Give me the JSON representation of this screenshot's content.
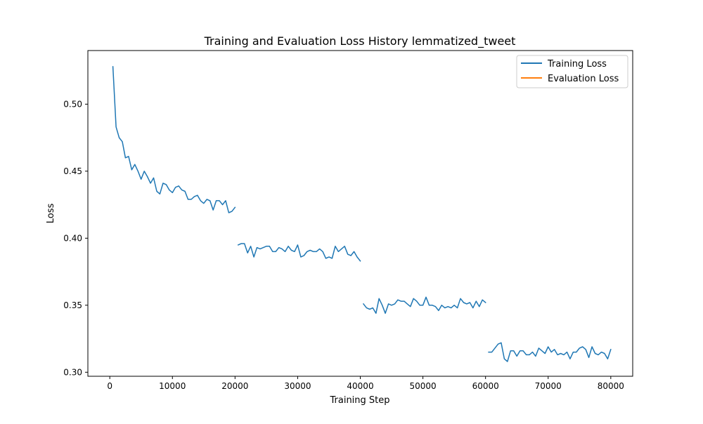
{
  "chart_data": {
    "type": "line",
    "title": "Training and Evaluation Loss History lemmatized_tweet",
    "xlabel": "Training Step",
    "ylabel": "Loss",
    "xlim": [
      -3500,
      83500
    ],
    "ylim": [
      0.297,
      0.54
    ],
    "xticks": [
      0,
      10000,
      20000,
      30000,
      40000,
      50000,
      60000,
      70000,
      80000
    ],
    "xtick_labels": [
      "0",
      "10000",
      "20000",
      "30000",
      "40000",
      "50000",
      "60000",
      "70000",
      "80000"
    ],
    "yticks": [
      0.3,
      0.35,
      0.4,
      0.45,
      0.5
    ],
    "ytick_labels": [
      "0.30",
      "0.35",
      "0.40",
      "0.45",
      "0.50"
    ],
    "grid": false,
    "legend": {
      "position": "top-right",
      "entries": [
        "Training Loss",
        "Evaluation Loss"
      ]
    },
    "colors": {
      "training": "#1f77b4",
      "evaluation": "#ff7f0e"
    },
    "series": [
      {
        "name": "Training Loss",
        "color": "#1f77b4",
        "segments": [
          {
            "x": [
              500,
              1000,
              1500,
              2000,
              2500,
              3000,
              3500,
              4000,
              4500,
              5000,
              5500,
              6000,
              6500,
              7000,
              7500,
              8000,
              8500,
              9000,
              9500,
              10000,
              10500,
              11000,
              11500,
              12000,
              12500,
              13000,
              13500,
              14000,
              14500,
              15000,
              15500,
              16000,
              16500,
              17000,
              17500,
              18000,
              18500,
              19000,
              19500,
              20000
            ],
            "y": [
              0.528,
              0.483,
              0.475,
              0.472,
              0.46,
              0.461,
              0.451,
              0.455,
              0.45,
              0.444,
              0.45,
              0.446,
              0.441,
              0.445,
              0.435,
              0.433,
              0.441,
              0.44,
              0.436,
              0.434,
              0.438,
              0.439,
              0.436,
              0.435,
              0.429,
              0.429,
              0.431,
              0.432,
              0.428,
              0.426,
              0.429,
              0.428,
              0.421,
              0.428,
              0.428,
              0.425,
              0.428,
              0.419,
              0.42,
              0.423
            ]
          },
          {
            "x": [
              20500,
              21000,
              21500,
              22000,
              22500,
              23000,
              23500,
              24000,
              24500,
              25000,
              25500,
              26000,
              26500,
              27000,
              27500,
              28000,
              28500,
              29000,
              29500,
              30000,
              30500,
              31000,
              31500,
              32000,
              32500,
              33000,
              33500,
              34000,
              34500,
              35000,
              35500,
              36000,
              36500,
              37000,
              37500,
              38000,
              38500,
              39000,
              39500,
              40000
            ],
            "y": [
              0.395,
              0.396,
              0.396,
              0.389,
              0.394,
              0.386,
              0.393,
              0.392,
              0.393,
              0.394,
              0.394,
              0.39,
              0.39,
              0.393,
              0.392,
              0.39,
              0.394,
              0.391,
              0.39,
              0.395,
              0.386,
              0.387,
              0.39,
              0.391,
              0.39,
              0.39,
              0.392,
              0.39,
              0.385,
              0.386,
              0.385,
              0.394,
              0.39,
              0.392,
              0.394,
              0.388,
              0.387,
              0.39,
              0.386,
              0.383
            ]
          },
          {
            "x": [
              40500,
              41000,
              41500,
              42000,
              42500,
              43000,
              43500,
              44000,
              44500,
              45000,
              45500,
              46000,
              46500,
              47000,
              47500,
              48000,
              48500,
              49000,
              49500,
              50000,
              50500,
              51000,
              51500,
              52000,
              52500,
              53000,
              53500,
              54000,
              54500,
              55000,
              55500,
              56000,
              56500,
              57000,
              57500,
              58000,
              58500,
              59000,
              59500,
              60000
            ],
            "y": [
              0.351,
              0.348,
              0.347,
              0.348,
              0.344,
              0.355,
              0.35,
              0.344,
              0.351,
              0.35,
              0.351,
              0.354,
              0.353,
              0.353,
              0.351,
              0.349,
              0.355,
              0.353,
              0.35,
              0.35,
              0.356,
              0.35,
              0.35,
              0.349,
              0.346,
              0.35,
              0.348,
              0.349,
              0.348,
              0.35,
              0.348,
              0.355,
              0.352,
              0.351,
              0.352,
              0.348,
              0.353,
              0.349,
              0.354,
              0.352
            ]
          },
          {
            "x": [
              60500,
              61000,
              61500,
              62000,
              62500,
              63000,
              63500,
              64000,
              64500,
              65000,
              65500,
              66000,
              66500,
              67000,
              67500,
              68000,
              68500,
              69000,
              69500,
              70000,
              70500,
              71000,
              71500,
              72000,
              72500,
              73000,
              73500,
              74000,
              74500,
              75000,
              75500,
              76000,
              76500,
              77000,
              77500,
              78000,
              78500,
              79000,
              79500,
              80000
            ],
            "y": [
              0.315,
              0.315,
              0.318,
              0.321,
              0.322,
              0.31,
              0.308,
              0.316,
              0.316,
              0.312,
              0.316,
              0.316,
              0.313,
              0.313,
              0.315,
              0.312,
              0.318,
              0.316,
              0.314,
              0.319,
              0.315,
              0.317,
              0.313,
              0.314,
              0.313,
              0.315,
              0.31,
              0.315,
              0.315,
              0.318,
              0.319,
              0.317,
              0.311,
              0.319,
              0.314,
              0.313,
              0.315,
              0.314,
              0.31,
              0.317
            ]
          }
        ]
      },
      {
        "name": "Evaluation Loss",
        "color": "#ff7f0e",
        "segments": []
      }
    ]
  }
}
